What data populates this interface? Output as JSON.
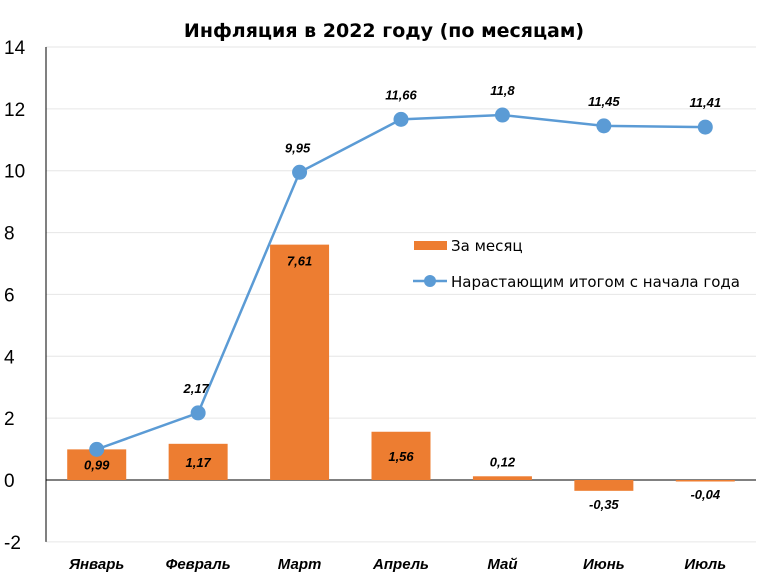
{
  "chart_data": {
    "type": "bar+line",
    "title": "Инфляция в 2022 году (по месяцам)",
    "xlabel": "",
    "ylabel": "",
    "categories": [
      "Январь",
      "Февраль",
      "Март",
      "Апрель",
      "Май",
      "Июнь",
      "Июль"
    ],
    "ylim": [
      -2,
      14
    ],
    "yticks": [
      -2,
      0,
      2,
      4,
      6,
      8,
      10,
      12,
      14
    ],
    "grid": true,
    "legend_position": "right-middle",
    "series": [
      {
        "name": "За месяц",
        "type": "bar",
        "color": "#ED7D31",
        "values": [
          0.99,
          1.17,
          7.61,
          1.56,
          0.12,
          -0.35,
          -0.04
        ],
        "labels": [
          "0,99",
          "1,17",
          "7,61",
          "1,56",
          "0,12",
          "-0,35",
          "-0,04"
        ]
      },
      {
        "name": "Нарастающим итогом с начала года",
        "type": "line",
        "color": "#5B9BD5",
        "values": [
          0.99,
          2.17,
          9.95,
          11.66,
          11.8,
          11.45,
          11.41
        ],
        "labels": [
          "",
          "2,17",
          "9,95",
          "11,66",
          "11,8",
          "11,45",
          "11,41"
        ]
      }
    ]
  }
}
